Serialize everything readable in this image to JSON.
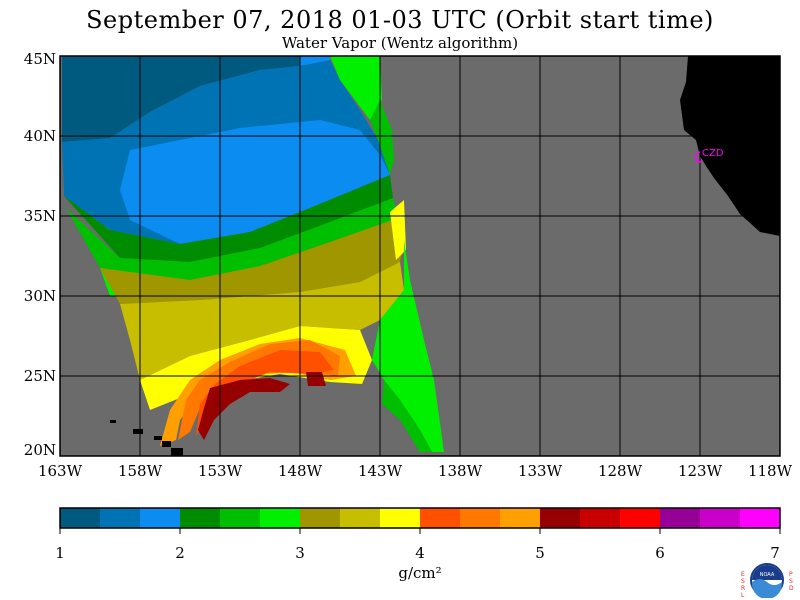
{
  "title": "September 07, 2018  01-03 UTC  (Orbit start time)",
  "subtitle": "Water Vapor (Wentz algorithm)",
  "map": {
    "lat_labels": [
      "45N",
      "40N",
      "35N",
      "30N",
      "25N",
      "20N"
    ],
    "lon_labels": [
      "163W",
      "158W",
      "153W",
      "148W",
      "143W",
      "138W",
      "133W",
      "128W",
      "123W",
      "118W"
    ],
    "station_label": "CZD",
    "colors": {
      "ocean_no_data": "#6b6b6b",
      "land": "#000000",
      "station": "#ff00ff",
      "grid": "#000000"
    }
  },
  "colorbar": {
    "ticks": [
      "1",
      "2",
      "3",
      "4",
      "5",
      "6",
      "7"
    ],
    "unit": "g/cm²",
    "colors": [
      "#005a80",
      "#0073b4",
      "#0a8cf0",
      "#008c00",
      "#00be00",
      "#00f000",
      "#a09600",
      "#c8be00",
      "#ffff00",
      "#ff5000",
      "#ff7800",
      "#ffa000",
      "#960000",
      "#c80000",
      "#ff0000",
      "#960096",
      "#c800c8",
      "#ff00ff"
    ]
  },
  "logo": {
    "left_letters": "ESRL",
    "right_letters": "PSD",
    "center_text": "NOAA"
  }
}
